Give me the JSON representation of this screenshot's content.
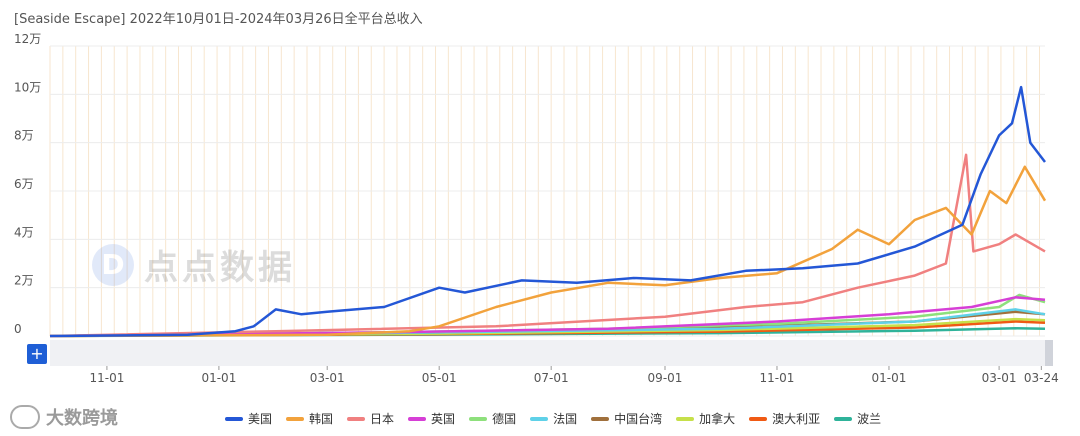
{
  "title": "[Seaside Escape]  2022年10月01日-2024年03月26日全平台总收入",
  "brand": "大数跨境",
  "watermark": "点点数据",
  "watermark_logo": "D",
  "plus_label": "+",
  "chart_data": {
    "type": "line",
    "ylim": [
      0,
      120000
    ],
    "yticks": [
      {
        "v": 0,
        "label": "0"
      },
      {
        "v": 20000,
        "label": "2万"
      },
      {
        "v": 40000,
        "label": "4万"
      },
      {
        "v": 60000,
        "label": "6万"
      },
      {
        "v": 80000,
        "label": "8万"
      },
      {
        "v": 100000,
        "label": "10万"
      },
      {
        "v": 120000,
        "label": "12万"
      }
    ],
    "date_range": [
      "2022-10-01",
      "2024-03-26"
    ],
    "xticks": [
      {
        "date": "2022-11-01",
        "label": "11-01"
      },
      {
        "date": "2023-01-01",
        "label": "01-01"
      },
      {
        "date": "2023-03-01",
        "label": "03-01"
      },
      {
        "date": "2023-05-01",
        "label": "05-01"
      },
      {
        "date": "2023-07-01",
        "label": "07-01"
      },
      {
        "date": "2023-09-01",
        "label": "09-01"
      },
      {
        "date": "2023-11-01",
        "label": "11-01"
      },
      {
        "date": "2024-01-01",
        "label": "01-01"
      },
      {
        "date": "2024-03-01",
        "label": "03-01"
      },
      {
        "date": "2024-03-24",
        "label": "03-24"
      }
    ],
    "series": [
      {
        "name": "美国",
        "color": "#2457d6",
        "points": [
          [
            "2022-10-01",
            0
          ],
          [
            "2022-12-15",
            500
          ],
          [
            "2023-01-10",
            2000
          ],
          [
            "2023-01-20",
            4000
          ],
          [
            "2023-02-01",
            11000
          ],
          [
            "2023-02-15",
            9000
          ],
          [
            "2023-03-01",
            10000
          ],
          [
            "2023-04-01",
            12000
          ],
          [
            "2023-05-01",
            20000
          ],
          [
            "2023-05-15",
            18000
          ],
          [
            "2023-06-15",
            23000
          ],
          [
            "2023-07-15",
            22000
          ],
          [
            "2023-08-15",
            24000
          ],
          [
            "2023-09-15",
            23000
          ],
          [
            "2023-10-15",
            27000
          ],
          [
            "2023-11-15",
            28000
          ],
          [
            "2023-12-15",
            30000
          ],
          [
            "2024-01-15",
            37000
          ],
          [
            "2024-02-10",
            46000
          ],
          [
            "2024-02-20",
            67000
          ],
          [
            "2024-03-01",
            83000
          ],
          [
            "2024-03-08",
            88000
          ],
          [
            "2024-03-13",
            103000
          ],
          [
            "2024-03-18",
            80000
          ],
          [
            "2024-03-26",
            72000
          ]
        ]
      },
      {
        "name": "韩国",
        "color": "#f2a23c",
        "points": [
          [
            "2022-10-01",
            0
          ],
          [
            "2023-03-01",
            500
          ],
          [
            "2023-04-15",
            2000
          ],
          [
            "2023-05-01",
            4000
          ],
          [
            "2023-06-01",
            12000
          ],
          [
            "2023-07-01",
            18000
          ],
          [
            "2023-08-01",
            22000
          ],
          [
            "2023-09-01",
            21000
          ],
          [
            "2023-10-01",
            24000
          ],
          [
            "2023-11-01",
            26000
          ],
          [
            "2023-12-01",
            36000
          ],
          [
            "2023-12-15",
            44000
          ],
          [
            "2024-01-01",
            38000
          ],
          [
            "2024-01-15",
            48000
          ],
          [
            "2024-02-01",
            53000
          ],
          [
            "2024-02-15",
            42000
          ],
          [
            "2024-02-25",
            60000
          ],
          [
            "2024-03-05",
            55000
          ],
          [
            "2024-03-15",
            70000
          ],
          [
            "2024-03-26",
            56000
          ]
        ]
      },
      {
        "name": "日本",
        "color": "#f08080",
        "points": [
          [
            "2022-10-01",
            0
          ],
          [
            "2023-02-01",
            2000
          ],
          [
            "2023-06-01",
            4000
          ],
          [
            "2023-09-01",
            8000
          ],
          [
            "2023-10-15",
            12000
          ],
          [
            "2023-11-15",
            14000
          ],
          [
            "2023-12-15",
            20000
          ],
          [
            "2024-01-15",
            25000
          ],
          [
            "2024-02-01",
            30000
          ],
          [
            "2024-02-12",
            75000
          ],
          [
            "2024-02-16",
            35000
          ],
          [
            "2024-03-01",
            38000
          ],
          [
            "2024-03-10",
            42000
          ],
          [
            "2024-03-26",
            35000
          ]
        ]
      },
      {
        "name": "英国",
        "color": "#d63fd6",
        "points": [
          [
            "2022-10-01",
            0
          ],
          [
            "2023-04-01",
            1500
          ],
          [
            "2023-08-01",
            3000
          ],
          [
            "2023-11-01",
            6000
          ],
          [
            "2024-01-01",
            9000
          ],
          [
            "2024-02-15",
            12000
          ],
          [
            "2024-03-10",
            16000
          ],
          [
            "2024-03-26",
            15000
          ]
        ]
      },
      {
        "name": "德国",
        "color": "#8ee07c",
        "points": [
          [
            "2022-10-01",
            0
          ],
          [
            "2023-04-01",
            1500
          ],
          [
            "2023-08-01",
            3000
          ],
          [
            "2023-11-01",
            5000
          ],
          [
            "2024-01-15",
            8000
          ],
          [
            "2024-03-01",
            12000
          ],
          [
            "2024-03-12",
            17000
          ],
          [
            "2024-03-26",
            14000
          ]
        ]
      },
      {
        "name": "法国",
        "color": "#5fd1e8",
        "points": [
          [
            "2022-10-01",
            0
          ],
          [
            "2023-05-01",
            1500
          ],
          [
            "2023-10-01",
            3000
          ],
          [
            "2024-01-15",
            6000
          ],
          [
            "2024-03-10",
            11000
          ],
          [
            "2024-03-26",
            9000
          ]
        ]
      },
      {
        "name": "中国台湾",
        "color": "#a0703c",
        "points": [
          [
            "2022-10-01",
            0
          ],
          [
            "2023-05-01",
            1500
          ],
          [
            "2023-10-01",
            3500
          ],
          [
            "2024-01-15",
            6000
          ],
          [
            "2024-03-10",
            10000
          ],
          [
            "2024-03-26",
            9000
          ]
        ]
      },
      {
        "name": "加拿大",
        "color": "#c6e04a",
        "points": [
          [
            "2022-10-01",
            0
          ],
          [
            "2023-05-01",
            1000
          ],
          [
            "2023-10-01",
            2500
          ],
          [
            "2024-01-15",
            4500
          ],
          [
            "2024-03-10",
            7000
          ],
          [
            "2024-03-26",
            6500
          ]
        ]
      },
      {
        "name": "澳大利亚",
        "color": "#f05a14",
        "points": [
          [
            "2022-10-01",
            0
          ],
          [
            "2023-05-01",
            800
          ],
          [
            "2023-10-01",
            1800
          ],
          [
            "2024-01-15",
            3500
          ],
          [
            "2024-03-10",
            6000
          ],
          [
            "2024-03-26",
            5500
          ]
        ]
      },
      {
        "name": "波兰",
        "color": "#2fb39a",
        "points": [
          [
            "2022-10-01",
            0
          ],
          [
            "2023-05-01",
            600
          ],
          [
            "2023-10-01",
            1200
          ],
          [
            "2024-01-15",
            2200
          ],
          [
            "2024-03-10",
            3200
          ],
          [
            "2024-03-26",
            3000
          ]
        ]
      }
    ]
  }
}
